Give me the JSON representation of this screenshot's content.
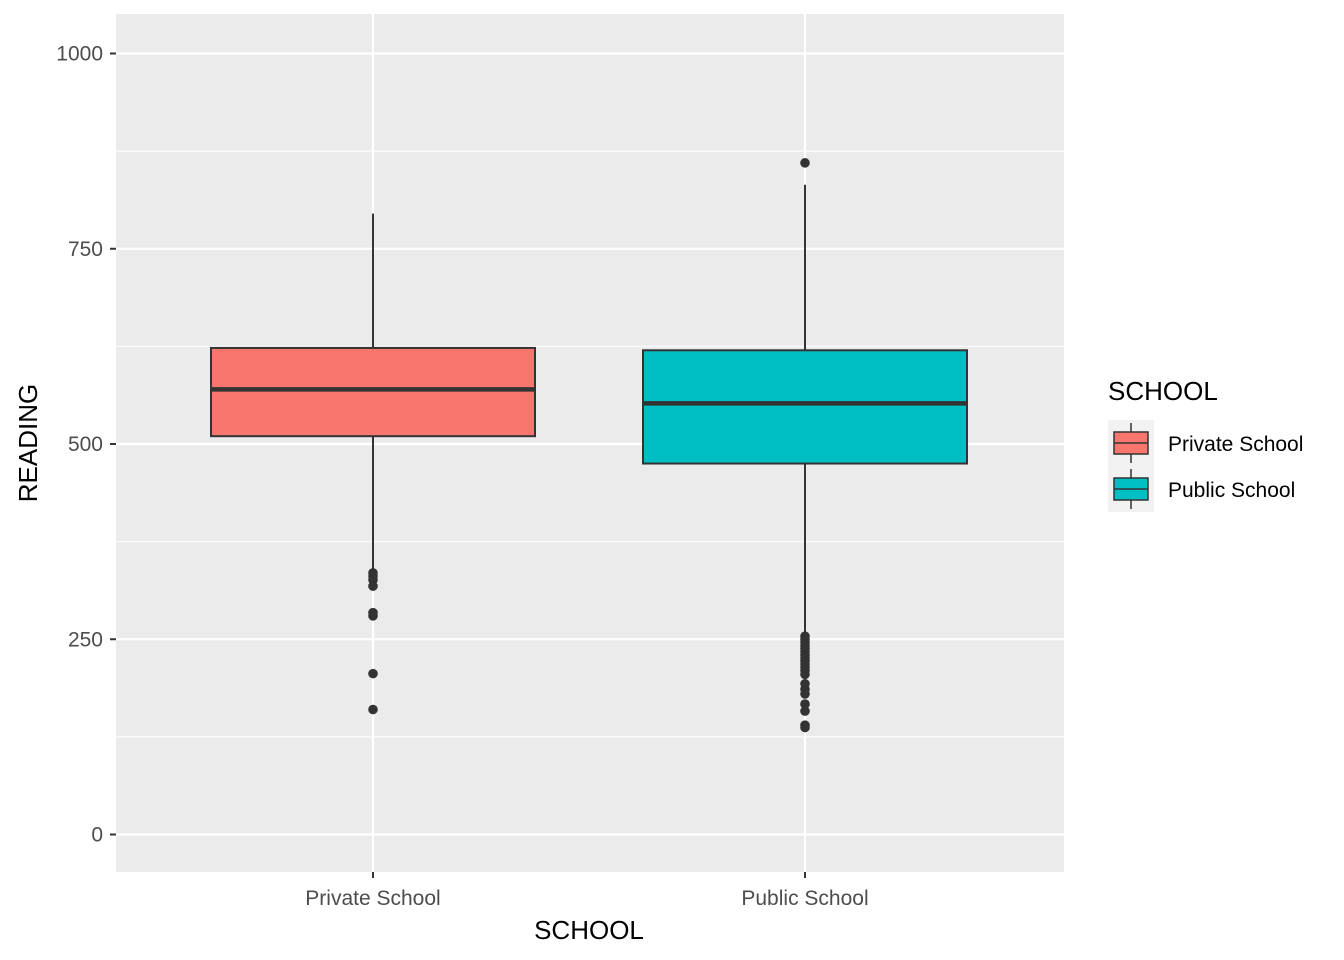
{
  "chart_data": {
    "type": "boxplot",
    "xlabel": "SCHOOL",
    "ylabel": "READING",
    "ylim": [
      -100,
      1050
    ],
    "yticks": [
      0,
      250,
      500,
      750,
      1000
    ],
    "ytick_labels": [
      "0",
      "250",
      "500",
      "750",
      "1000"
    ],
    "y_minor_ticks": [
      125,
      375,
      625,
      875
    ],
    "grid": true,
    "categories": [
      "Private School",
      "Public School"
    ],
    "legend": {
      "title": "SCHOOL",
      "position": "right",
      "entries": [
        "Private School",
        "Public School"
      ]
    },
    "boxes": [
      {
        "category": "Private School",
        "color": "#F8766D",
        "whisker_low": 338,
        "q1": 510,
        "median": 570,
        "q3": 623,
        "whisker_high": 795,
        "outliers": [
          160,
          206,
          280,
          284,
          318,
          326,
          331,
          335
        ]
      },
      {
        "category": "Public School",
        "color": "#00BFC4",
        "whisker_low": 258,
        "q1": 475,
        "median": 552,
        "q3": 620,
        "whisker_high": 832,
        "outliers": [
          860,
          137,
          140,
          158,
          167,
          180,
          186,
          193,
          205,
          210,
          214,
          218,
          222,
          226,
          230,
          234,
          238,
          242,
          246,
          250,
          254
        ]
      }
    ]
  }
}
